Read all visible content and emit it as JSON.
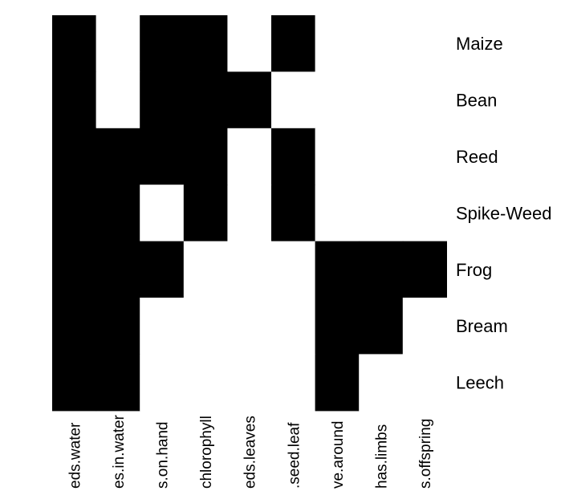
{
  "chart_data": {
    "type": "heatmap",
    "title": "",
    "xlabel": "",
    "ylabel": "",
    "colors": {
      "present": "#000000",
      "absent": "#ffffff"
    },
    "rows": [
      "Maize",
      "Bean",
      "Reed",
      "Spike-Weed",
      "Frog",
      "Bream",
      "Leech"
    ],
    "columns": [
      "eds.water",
      "es.in.water",
      "s.on.hand",
      "chlorophyll",
      "eds.leaves",
      ".seed.leaf",
      "ve.around",
      "has.limbs",
      "s.offspring"
    ],
    "values": [
      [
        1,
        0,
        1,
        1,
        0,
        1,
        0,
        0,
        0
      ],
      [
        1,
        0,
        1,
        1,
        1,
        0,
        0,
        0,
        0
      ],
      [
        1,
        1,
        1,
        1,
        0,
        1,
        0,
        0,
        0
      ],
      [
        1,
        1,
        0,
        1,
        0,
        1,
        0,
        0,
        0
      ],
      [
        1,
        1,
        1,
        0,
        0,
        0,
        1,
        1,
        1
      ],
      [
        1,
        1,
        0,
        0,
        0,
        0,
        1,
        1,
        0
      ],
      [
        1,
        1,
        0,
        0,
        0,
        0,
        1,
        0,
        0
      ]
    ]
  }
}
